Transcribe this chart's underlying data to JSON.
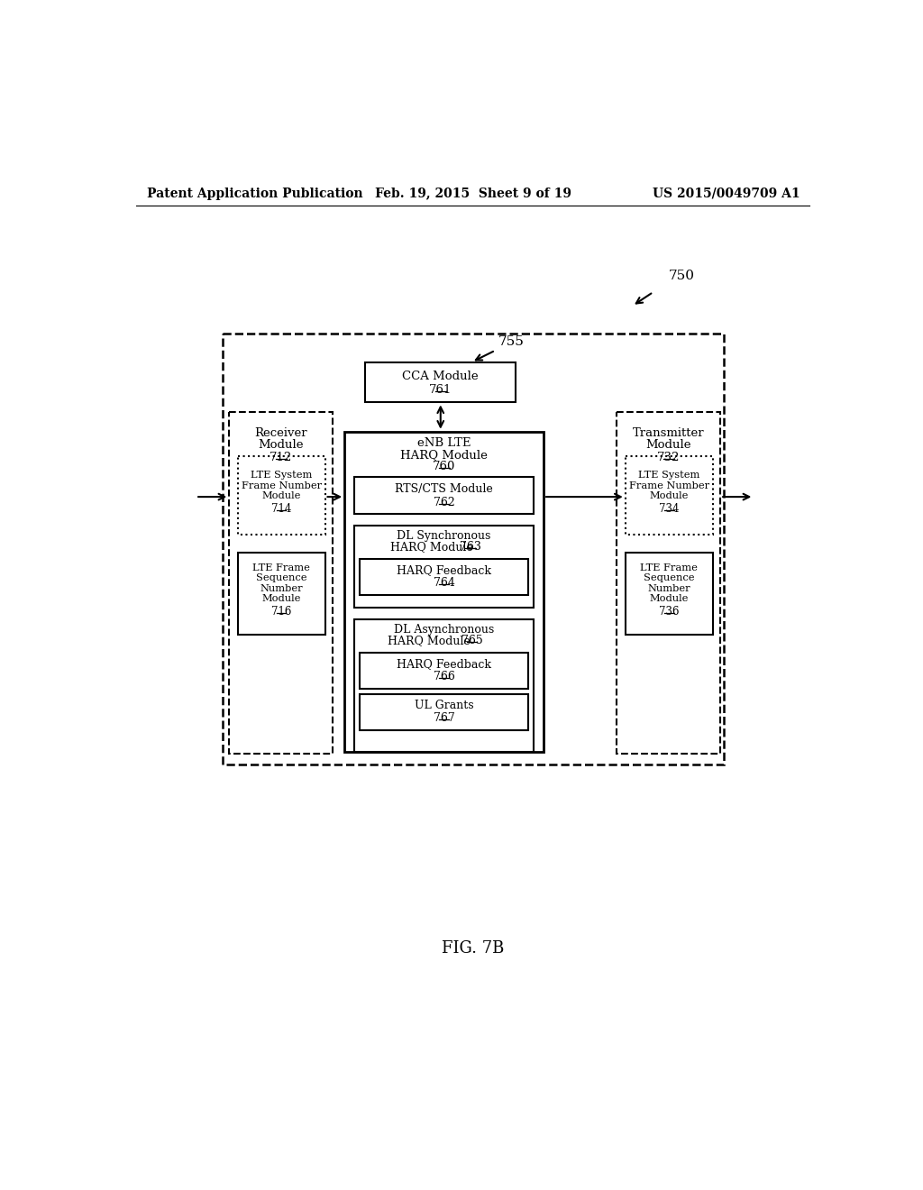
{
  "header_left": "Patent Application Publication",
  "header_mid": "Feb. 19, 2015  Sheet 9 of 19",
  "header_right": "US 2015/0049709 A1",
  "fig_label": "FIG. 7B",
  "ref_750": "750",
  "ref_755": "755",
  "background": "#ffffff",
  "text_color": "#000000"
}
